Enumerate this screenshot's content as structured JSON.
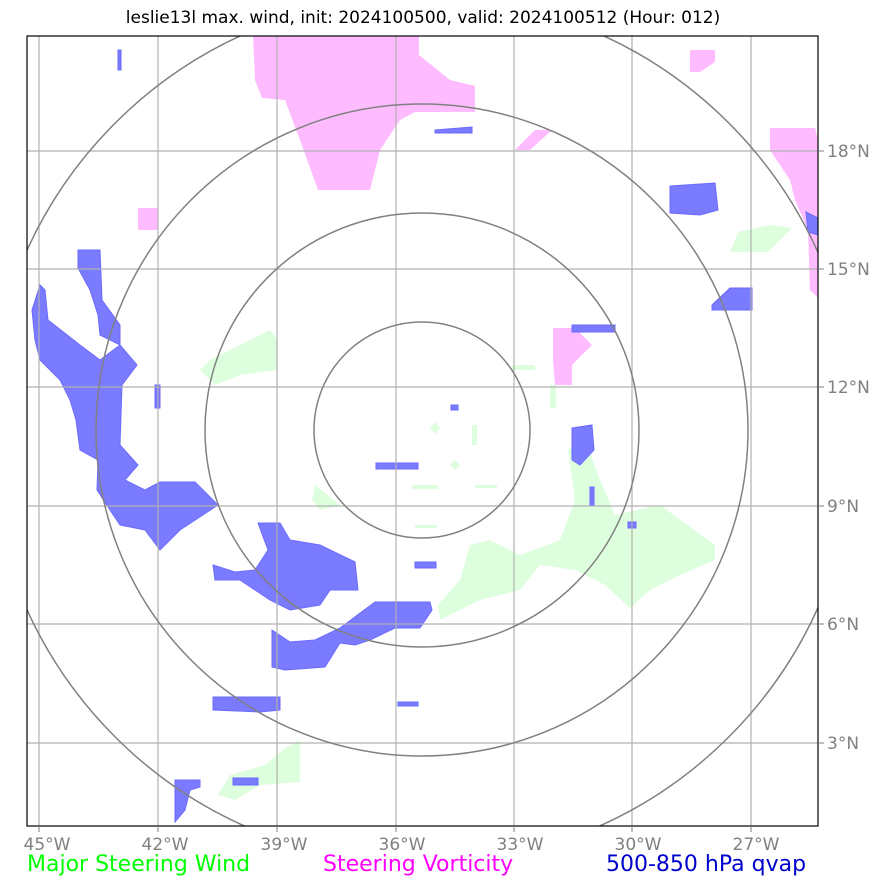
{
  "title": "leslie13l max. wind, init: 2024100500, valid: 2024100512 (Hour: 012)",
  "map": {
    "x_ticks": [
      "45°W",
      "42°W",
      "39°W",
      "36°W",
      "33°W",
      "30°W",
      "27°W"
    ],
    "y_ticks": [
      "18°N",
      "15°N",
      "12°N",
      "9°N",
      "6°N",
      "3°N"
    ],
    "grid": true,
    "range_rings": 4
  },
  "legend": [
    {
      "label": "Major Steering Wind",
      "color": "#00ff00"
    },
    {
      "label": "Steering Vorticity",
      "color": "#ff00ff"
    },
    {
      "label": "500-850 hPa qvap",
      "color": "#0000cd"
    }
  ],
  "colors": {
    "wind_fill": "#ddffdd",
    "vorticity_fill": "#ffbbff",
    "qvap_fill": "#7b7bff",
    "grid": "#b0b0b0",
    "rings": "#808080"
  }
}
